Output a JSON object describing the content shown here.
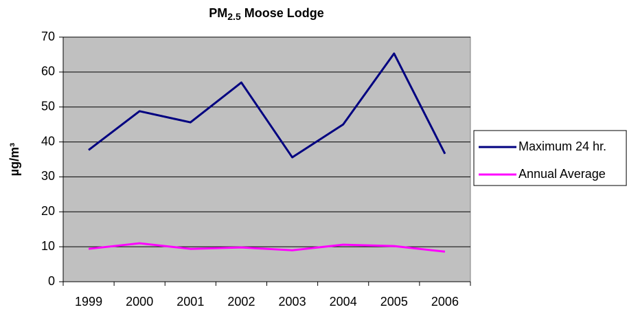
{
  "chart_data": {
    "type": "line",
    "title": {
      "main": "PM",
      "subscript": "2.5",
      "rest": "Moose Lodge"
    },
    "y_label": "µg/m³",
    "categories": [
      "1999",
      "2000",
      "2001",
      "2002",
      "2003",
      "2004",
      "2005",
      "2006"
    ],
    "series": [
      {
        "name": "Maximum 24 hr.",
        "color": "#000080",
        "values": [
          37.7,
          48.8,
          45.6,
          57.0,
          35.6,
          45.0,
          65.3,
          36.6
        ]
      },
      {
        "name": "Annual Average",
        "color": "#ff00ff",
        "values": [
          9.4,
          11.0,
          9.4,
          9.8,
          9.0,
          10.6,
          10.2,
          8.6
        ]
      }
    ],
    "ylim": [
      0,
      70
    ],
    "yticks": [
      0,
      10,
      20,
      30,
      40,
      50,
      60,
      70
    ],
    "grid": true,
    "legend": "right",
    "plot_background": "#c0c0c0"
  }
}
